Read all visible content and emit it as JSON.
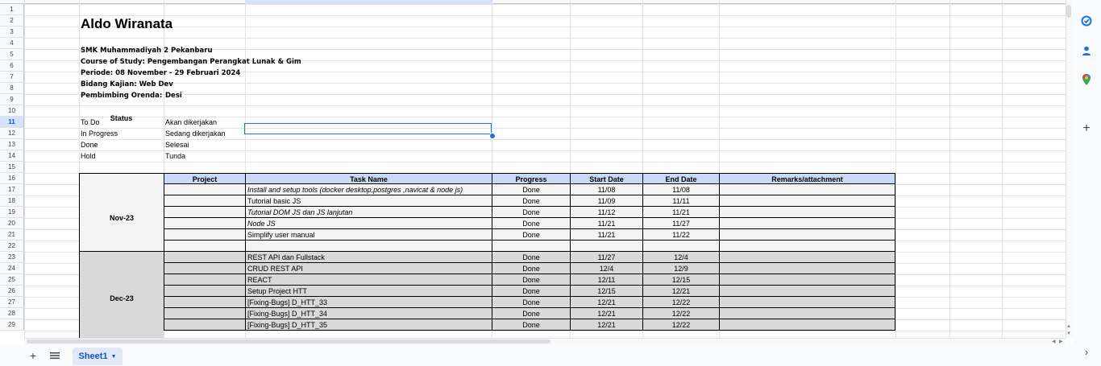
{
  "row_numbers": [
    "1",
    "2",
    "3",
    "4",
    "5",
    "6",
    "7",
    "8",
    "9",
    "10",
    "11",
    "12",
    "13",
    "14",
    "15",
    "16",
    "17",
    "18",
    "19",
    "20",
    "21",
    "22",
    "23",
    "24",
    "25",
    "26",
    "27",
    "28",
    "29"
  ],
  "title": "Aldo Wiranata",
  "info": {
    "school": "SMK Muhammadiyah 2 Pekanbaru",
    "course": "Course of Study: Pengembangan Perangkat Lunak & Gim",
    "period": "Periode: 08 November - 29 Februari 2024",
    "field": "Bidang Kajian: Web Dev",
    "mentor_label": "Pembimbing Orenda:",
    "mentor_name": "Desi"
  },
  "status": {
    "header": "Status",
    "items": [
      {
        "key": "To Do",
        "desc": "Akan dikerjakan"
      },
      {
        "key": "In Progress",
        "desc": "Sedang dikerjakan"
      },
      {
        "key": "Done",
        "desc": "Selesai"
      },
      {
        "key": "Hold",
        "desc": "Tunda"
      }
    ]
  },
  "table": {
    "headers": [
      "Project",
      "Task Name",
      "Progress",
      "Start Date",
      "End Date",
      "Remarks/attachment"
    ],
    "groups": [
      {
        "label": "Nov-23"
      },
      {
        "label": "Dec-23"
      }
    ],
    "rows": [
      {
        "task": "Install  and setup tools (docker desktop,postgres ,navicat & node js)",
        "progress": "Done",
        "start": "11/08",
        "end": "11/08",
        "italic": true
      },
      {
        "task": "Tutorial basic JS",
        "progress": "Done",
        "start": "11/09",
        "end": "11/11",
        "italic": false
      },
      {
        "task": "Tutorial DOM JS dan JS lanjutan",
        "progress": "Done",
        "start": "11/12",
        "end": "11/21",
        "italic": true
      },
      {
        "task": "Node JS",
        "progress": "Done",
        "start": "11/21",
        "end": "11/27",
        "italic": true
      },
      {
        "task": "Simplify user manual",
        "progress": "Done",
        "start": "11/21",
        "end": "11/22",
        "italic": false
      },
      {
        "task": "",
        "progress": "",
        "start": "",
        "end": "",
        "italic": false
      },
      {
        "task": "REST API dan Fullstack",
        "progress": "Done",
        "start": "11/27",
        "end": "12/4",
        "italic": false
      },
      {
        "task": "CRUD REST API",
        "progress": "Done",
        "start": "12/4",
        "end": "12/9",
        "italic": false
      },
      {
        "task": "REACT",
        "progress": "Done",
        "start": "12/11",
        "end": "12/15",
        "italic": false
      },
      {
        "task": "Setup Project HTT",
        "progress": "Done",
        "start": "12/15",
        "end": "12/21",
        "italic": false
      },
      {
        "task": "[Fixing-Bugs] D_HTT_33",
        "progress": "Done",
        "start": "12/21",
        "end": "12/22",
        "italic": false
      },
      {
        "task": "[Fixing-Bugs] D_HTT_34",
        "progress": "Done",
        "start": "12/21",
        "end": "12/22",
        "italic": false
      },
      {
        "task": "[Fixing-Bugs] D_HTT_35",
        "progress": "Done",
        "start": "12/21",
        "end": "12/22",
        "italic": false
      }
    ]
  },
  "sheet_tab": {
    "label": "Sheet1"
  },
  "colors": {
    "header_fill": "#c9daf8",
    "nov_fill": "#f3f3f3",
    "dec_fill": "#d9d9d9",
    "selection": "#1a73e8"
  }
}
